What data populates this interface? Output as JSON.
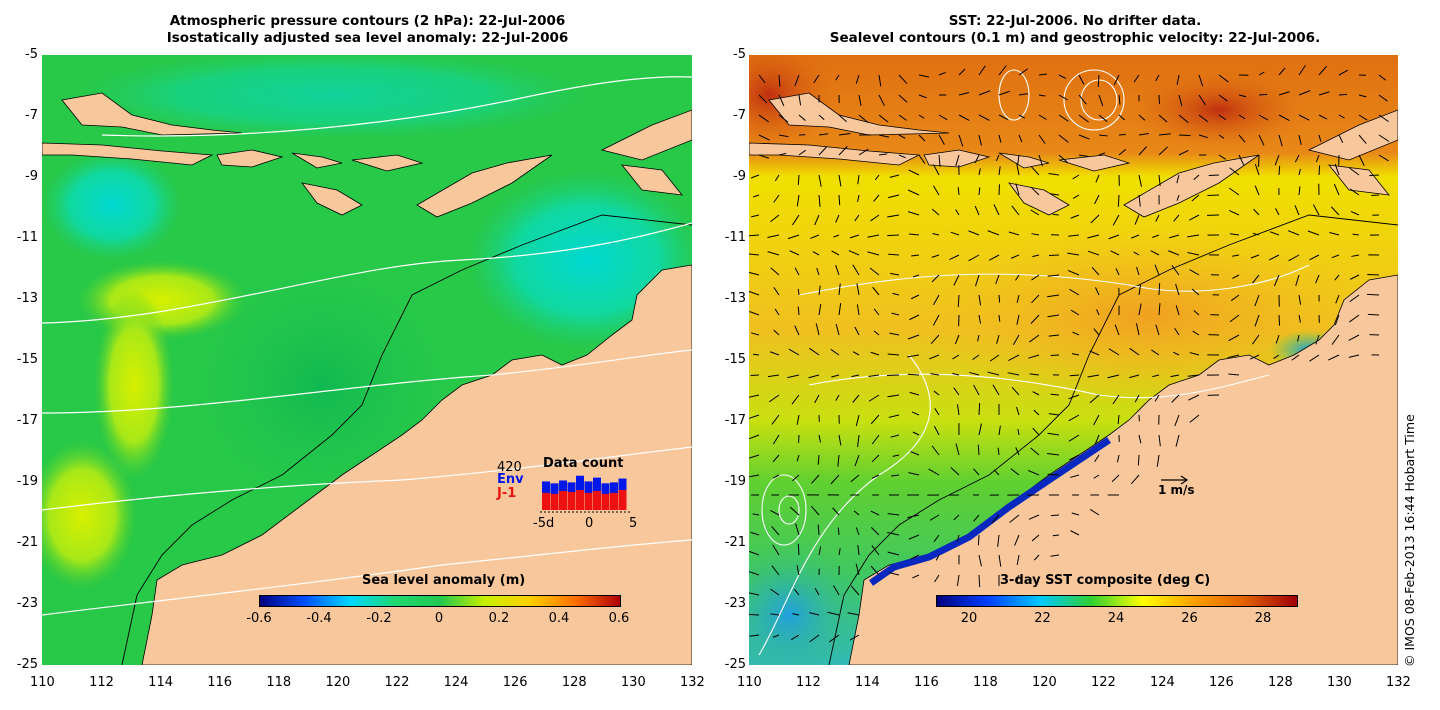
{
  "left_panel": {
    "title_line1": "Atmospheric pressure contours (2 hPa): 22-Jul-2006",
    "title_line2": "Isostatically adjusted sea level anomaly: 22-Jul-2006",
    "colorbar": {
      "title": "Sea level anomaly (m)",
      "labels": [
        "-0.6",
        "-0.4",
        "-0.2",
        "0",
        "0.2",
        "0.4",
        "0.6"
      ]
    },
    "data_count": {
      "title": "Data count",
      "max_label": "420",
      "env_label": "Env",
      "j1_label": "J-1",
      "axis_labels": [
        "-5d",
        "0",
        "5"
      ],
      "env_counts": [
        300,
        280,
        310,
        290,
        360,
        300,
        340,
        280,
        290,
        330
      ],
      "j1_counts": [
        180,
        170,
        200,
        190,
        210,
        180,
        200,
        170,
        180,
        210
      ],
      "env_color": "#0018e8",
      "j1_color": "#ee1111"
    }
  },
  "right_panel": {
    "title_line1": "SST: 22-Jul-2006. No drifter data.",
    "title_line2": "Sealevel contours (0.1 m) and geostrophic velocity: 22-Jul-2006.",
    "colorbar": {
      "title": "3-day SST composite (deg C)",
      "labels": [
        "20",
        "22",
        "24",
        "26",
        "28"
      ]
    },
    "scale_label": "1 m/s"
  },
  "axes": {
    "y_ticks": [
      "-5",
      "-7",
      "-9",
      "-11",
      "-13",
      "-15",
      "-17",
      "-19",
      "-21",
      "-23",
      "-25"
    ],
    "x_ticks": [
      "110",
      "112",
      "114",
      "116",
      "118",
      "120",
      "122",
      "124",
      "126",
      "128",
      "130",
      "132"
    ]
  },
  "credit": "© IMOS 08-Feb-2013 16:44 Hobart Time",
  "colors": {
    "land": "#f8c89c",
    "slam_ramp": [
      "#00007f",
      "#0050ff",
      "#00d8ff",
      "#20d870",
      "#20c850",
      "#c8f000",
      "#ffd000",
      "#ff7000",
      "#b00000"
    ],
    "sst_ramp": [
      "#000080",
      "#0040ff",
      "#00c8ff",
      "#30d030",
      "#ffff00",
      "#ffa000",
      "#e06000",
      "#a00000"
    ]
  }
}
